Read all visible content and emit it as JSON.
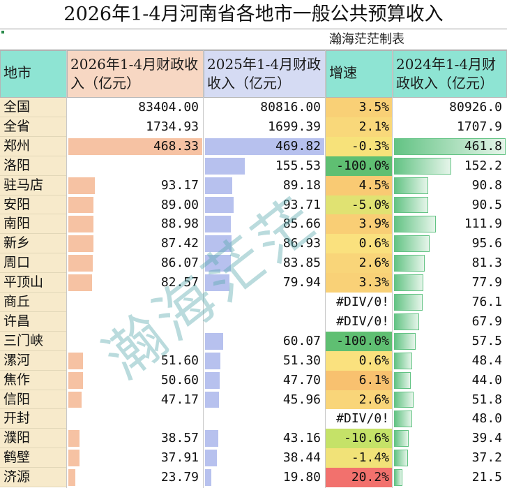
{
  "title": "2026年1-4月河南省各地市一般公共预算收入",
  "subtitle": "瀚海茫茫制表",
  "watermark": "瀚海茫茫",
  "headers": {
    "city": "地市",
    "col_2026": "2026年1-4月财政收入（亿元）",
    "col_2025": "2025年1-4月财政收入（亿元）",
    "growth": "增速",
    "col_2024": "2024年1-4月财政收入（亿元）"
  },
  "colors": {
    "bar_2026": "#f6c2a3",
    "bar_2025": "#b7c1ee",
    "bar_2024": "#63c384",
    "city_bg": "#f7eacb",
    "header_teal": "#8ee4d3"
  },
  "rows": [
    {
      "city": "全国",
      "v2026": "83404.00",
      "v2025": "80816.00",
      "growth": "3.5%",
      "g": 3.5,
      "v2024": "80926.0"
    },
    {
      "city": "全省",
      "v2026": "1734.93",
      "v2025": "1699.39",
      "growth": "2.1%",
      "g": 2.1,
      "v2024": "1707.9"
    },
    {
      "city": "郑州",
      "v2026": "468.33",
      "v2025": "469.82",
      "growth": "-0.3%",
      "g": -0.3,
      "v2024": "461.8"
    },
    {
      "city": "洛阳",
      "v2026": "",
      "v2025": "155.53",
      "growth": "-100.0%",
      "g": -100,
      "v2024": "152.2"
    },
    {
      "city": "驻马店",
      "v2026": "93.17",
      "v2025": "89.18",
      "growth": "4.5%",
      "g": 4.5,
      "v2024": "90.8"
    },
    {
      "city": "安阳",
      "v2026": "89.00",
      "v2025": "93.71",
      "growth": "-5.0%",
      "g": -5.0,
      "v2024": "90.5"
    },
    {
      "city": "南阳",
      "v2026": "88.98",
      "v2025": "85.66",
      "growth": "3.9%",
      "g": 3.9,
      "v2024": "111.9"
    },
    {
      "city": "新乡",
      "v2026": "87.42",
      "v2025": "86.93",
      "growth": "0.6%",
      "g": 0.6,
      "v2024": "95.6"
    },
    {
      "city": "周口",
      "v2026": "86.07",
      "v2025": "83.85",
      "growth": "2.6%",
      "g": 2.6,
      "v2024": "81.3"
    },
    {
      "city": "平顶山",
      "v2026": "82.57",
      "v2025": "79.94",
      "growth": "3.3%",
      "g": 3.3,
      "v2024": "77.9"
    },
    {
      "city": "商丘",
      "v2026": "",
      "v2025": "",
      "growth": "#DIV/0!",
      "g": null,
      "v2024": "76.1"
    },
    {
      "city": "许昌",
      "v2026": "",
      "v2025": "",
      "growth": "#DIV/0!",
      "g": null,
      "v2024": "67.9"
    },
    {
      "city": "三门峡",
      "v2026": "",
      "v2025": "60.07",
      "growth": "-100.0%",
      "g": -100,
      "v2024": "57.5"
    },
    {
      "city": "漯河",
      "v2026": "51.60",
      "v2025": "51.30",
      "growth": "0.6%",
      "g": 0.6,
      "v2024": "48.4"
    },
    {
      "city": "焦作",
      "v2026": "50.60",
      "v2025": "47.70",
      "growth": "6.1%",
      "g": 6.1,
      "v2024": "44.0"
    },
    {
      "city": "信阳",
      "v2026": "47.17",
      "v2025": "45.96",
      "growth": "2.6%",
      "g": 2.6,
      "v2024": "51.8"
    },
    {
      "city": "开封",
      "v2026": "",
      "v2025": "",
      "growth": "#DIV/0!",
      "g": null,
      "v2024": "48.0"
    },
    {
      "city": "濮阳",
      "v2026": "38.57",
      "v2025": "43.16",
      "growth": "-10.6%",
      "g": -10.6,
      "v2024": "39.4"
    },
    {
      "city": "鹤壁",
      "v2026": "37.91",
      "v2025": "38.44",
      "growth": "-1.4%",
      "g": -1.4,
      "v2024": "37.2"
    },
    {
      "city": "济源",
      "v2026": "23.79",
      "v2025": "19.80",
      "growth": "20.2%",
      "g": 20.2,
      "v2024": "21.5"
    }
  ]
}
